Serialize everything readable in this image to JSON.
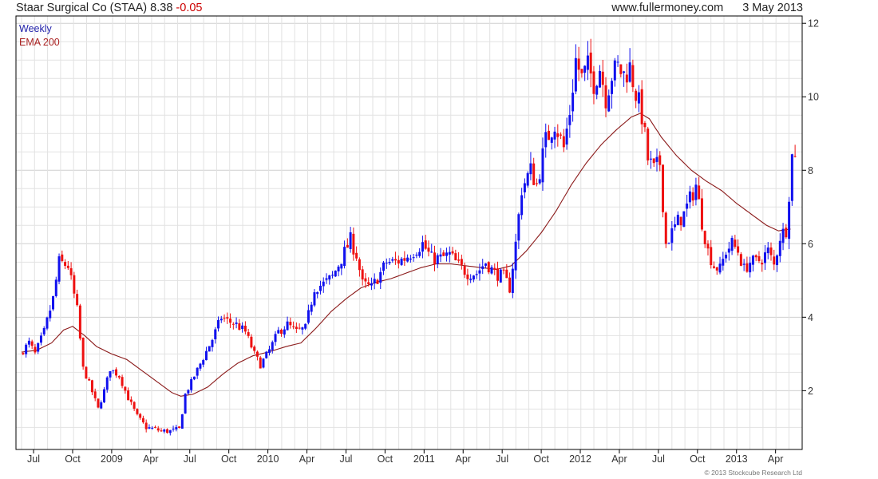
{
  "header": {
    "title": "Staar Surgical Co (STAA)",
    "last_price": "8.38",
    "change": "-0.05",
    "site": "www.fullermoney.com",
    "date": "3 May 2013"
  },
  "copyright": "© 2013 Stockcube Research Ltd",
  "colors": {
    "up": "#1111ee",
    "down": "#ee1111",
    "ema": "#8b1a1a",
    "grid": "#e2e2e2",
    "axis": "#000000"
  },
  "chart_data": {
    "type": "candlestick",
    "interval": "Weekly",
    "legend": [
      "Weekly",
      "EMA 200"
    ],
    "yaxis": {
      "side": "right",
      "ticks": [
        2,
        4,
        6,
        8,
        10,
        12
      ],
      "ylim": [
        0.4,
        12.2
      ]
    },
    "xaxis": {
      "ticks": [
        {
          "label": "Jul",
          "week": 4
        },
        {
          "label": "Oct",
          "week": 17
        },
        {
          "label": "2009",
          "week": 30
        },
        {
          "label": "Apr",
          "week": 43
        },
        {
          "label": "Jul",
          "week": 56
        },
        {
          "label": "Oct",
          "week": 69
        },
        {
          "label": "2010",
          "week": 82
        },
        {
          "label": "Apr",
          "week": 95
        },
        {
          "label": "Jul",
          "week": 108
        },
        {
          "label": "Oct",
          "week": 121
        },
        {
          "label": "2011",
          "week": 134
        },
        {
          "label": "Apr",
          "week": 147
        },
        {
          "label": "Jul",
          "week": 160
        },
        {
          "label": "Oct",
          "week": 173
        },
        {
          "label": "2012",
          "week": 186
        },
        {
          "label": "Apr",
          "week": 199
        },
        {
          "label": "Jul",
          "week": 212
        },
        {
          "label": "Oct",
          "week": 225
        },
        {
          "label": "2013",
          "week": 238
        },
        {
          "label": "Apr",
          "week": 251
        }
      ],
      "weeks": 258
    },
    "price_path": [
      [
        0,
        3.0
      ],
      [
        3,
        3.3
      ],
      [
        5,
        3.0
      ],
      [
        8,
        3.6
      ],
      [
        11,
        4.5
      ],
      [
        13,
        5.5
      ],
      [
        16,
        5.4
      ],
      [
        19,
        4.2
      ],
      [
        21,
        2.6
      ],
      [
        23,
        2.2
      ],
      [
        26,
        1.5
      ],
      [
        28,
        2.0
      ],
      [
        30,
        2.6
      ],
      [
        33,
        2.4
      ],
      [
        36,
        1.8
      ],
      [
        39,
        1.3
      ],
      [
        42,
        1.0
      ],
      [
        45,
        0.95
      ],
      [
        47,
        0.9
      ],
      [
        50,
        0.9
      ],
      [
        53,
        0.95
      ],
      [
        55,
        1.9
      ],
      [
        58,
        2.4
      ],
      [
        61,
        2.9
      ],
      [
        64,
        3.4
      ],
      [
        67,
        4.0
      ],
      [
        69,
        3.9
      ],
      [
        72,
        3.8
      ],
      [
        75,
        3.6
      ],
      [
        78,
        3.0
      ],
      [
        80,
        2.7
      ],
      [
        83,
        3.1
      ],
      [
        86,
        3.6
      ],
      [
        89,
        3.8
      ],
      [
        92,
        3.6
      ],
      [
        95,
        3.7
      ],
      [
        98,
        4.8
      ],
      [
        101,
        4.9
      ],
      [
        104,
        5.1
      ],
      [
        107,
        5.6
      ],
      [
        110,
        6.1
      ],
      [
        112,
        5.7
      ],
      [
        114,
        4.9
      ],
      [
        117,
        4.8
      ],
      [
        120,
        5.2
      ],
      [
        122,
        5.5
      ],
      [
        125,
        5.5
      ],
      [
        128,
        5.6
      ],
      [
        131,
        5.8
      ],
      [
        134,
        6.0
      ],
      [
        137,
        5.6
      ],
      [
        140,
        5.6
      ],
      [
        143,
        5.7
      ],
      [
        146,
        5.4
      ],
      [
        149,
        5.2
      ],
      [
        152,
        5.2
      ],
      [
        155,
        5.5
      ],
      [
        158,
        5.2
      ],
      [
        161,
        5.1
      ],
      [
        163,
        4.8
      ],
      [
        165,
        6.0
      ],
      [
        167,
        7.5
      ],
      [
        170,
        8.0
      ],
      [
        172,
        7.6
      ],
      [
        175,
        8.8
      ],
      [
        178,
        9.3
      ],
      [
        181,
        8.6
      ],
      [
        183,
        9.6
      ],
      [
        185,
        11.0
      ],
      [
        187,
        10.5
      ],
      [
        189,
        10.8
      ],
      [
        191,
        10.4
      ],
      [
        193,
        10.8
      ],
      [
        195,
        10.0
      ],
      [
        197,
        10.6
      ],
      [
        199,
        10.8
      ],
      [
        201,
        10.6
      ],
      [
        203,
        10.8
      ],
      [
        205,
        10.1
      ],
      [
        207,
        9.5
      ],
      [
        209,
        8.3
      ],
      [
        211,
        8.0
      ],
      [
        213,
        8.2
      ],
      [
        215,
        6.0
      ],
      [
        217,
        6.3
      ],
      [
        219,
        6.6
      ],
      [
        221,
        6.8
      ],
      [
        223,
        7.2
      ],
      [
        225,
        7.6
      ],
      [
        227,
        6.6
      ],
      [
        229,
        5.8
      ],
      [
        231,
        5.4
      ],
      [
        233,
        5.3
      ],
      [
        235,
        5.8
      ],
      [
        237,
        6.0
      ],
      [
        239,
        5.8
      ],
      [
        241,
        5.3
      ],
      [
        243,
        5.5
      ],
      [
        245,
        5.5
      ],
      [
        247,
        5.6
      ],
      [
        249,
        5.8
      ],
      [
        251,
        5.4
      ],
      [
        253,
        6.2
      ],
      [
        255,
        6.4
      ],
      [
        257,
        8.38
      ]
    ],
    "ema_path": [
      [
        0,
        3.05
      ],
      [
        5,
        3.1
      ],
      [
        10,
        3.3
      ],
      [
        14,
        3.65
      ],
      [
        17,
        3.75
      ],
      [
        21,
        3.5
      ],
      [
        25,
        3.2
      ],
      [
        30,
        3.0
      ],
      [
        35,
        2.85
      ],
      [
        40,
        2.55
      ],
      [
        45,
        2.25
      ],
      [
        50,
        1.95
      ],
      [
        53,
        1.85
      ],
      [
        57,
        1.9
      ],
      [
        62,
        2.1
      ],
      [
        67,
        2.45
      ],
      [
        72,
        2.75
      ],
      [
        77,
        2.95
      ],
      [
        82,
        3.05
      ],
      [
        88,
        3.2
      ],
      [
        93,
        3.3
      ],
      [
        98,
        3.7
      ],
      [
        103,
        4.15
      ],
      [
        108,
        4.5
      ],
      [
        113,
        4.8
      ],
      [
        118,
        4.95
      ],
      [
        123,
        5.05
      ],
      [
        128,
        5.2
      ],
      [
        133,
        5.35
      ],
      [
        138,
        5.45
      ],
      [
        143,
        5.45
      ],
      [
        148,
        5.4
      ],
      [
        153,
        5.35
      ],
      [
        158,
        5.3
      ],
      [
        163,
        5.4
      ],
      [
        168,
        5.8
      ],
      [
        173,
        6.3
      ],
      [
        178,
        6.9
      ],
      [
        183,
        7.6
      ],
      [
        188,
        8.2
      ],
      [
        193,
        8.7
      ],
      [
        198,
        9.1
      ],
      [
        203,
        9.45
      ],
      [
        206,
        9.55
      ],
      [
        209,
        9.4
      ],
      [
        213,
        8.9
      ],
      [
        218,
        8.4
      ],
      [
        223,
        8.0
      ],
      [
        228,
        7.7
      ],
      [
        233,
        7.45
      ],
      [
        238,
        7.1
      ],
      [
        243,
        6.8
      ],
      [
        248,
        6.5
      ],
      [
        252,
        6.35
      ],
      [
        256,
        6.4
      ]
    ]
  }
}
